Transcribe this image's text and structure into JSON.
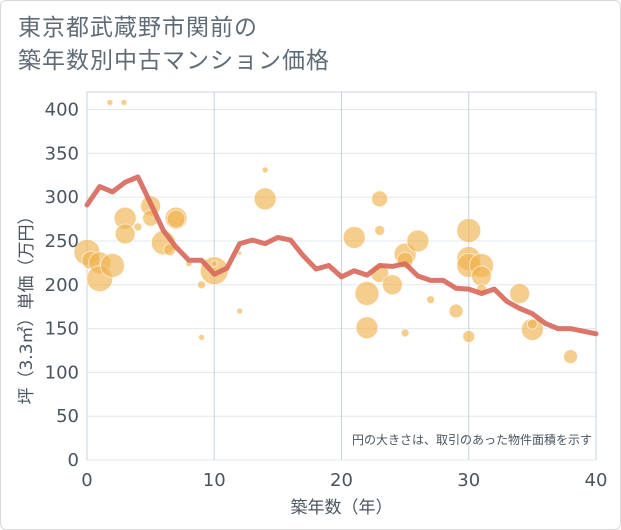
{
  "title": {
    "line1": "東京都武蔵野市関前の",
    "line2": "築年数別中古マンション価格"
  },
  "chart_data": {
    "type": "scatter+line",
    "xlabel": "築年数（年）",
    "ylabel": "坪（3.3㎡）単価（万円）",
    "xlim": [
      0,
      40
    ],
    "ylim": [
      0,
      420
    ],
    "x_ticks": [
      0,
      10,
      20,
      30,
      40
    ],
    "y_ticks": [
      0,
      50,
      100,
      150,
      200,
      250,
      300,
      350,
      400
    ],
    "grid": true,
    "annotation": "円の大きさは、取引のあった物件面積を示す",
    "colors": {
      "bubble": "#f0b24f",
      "line": "#d8675a",
      "axis_text": "#4a5560"
    },
    "line_series": {
      "x": [
        0,
        1,
        2,
        3,
        4,
        5,
        6,
        7,
        8,
        9,
        10,
        11,
        12,
        13,
        14,
        15,
        16,
        17,
        18,
        19,
        20,
        21,
        22,
        23,
        24,
        25,
        26,
        27,
        28,
        29,
        30,
        31,
        32,
        33,
        34,
        35,
        36,
        37,
        38,
        39,
        40
      ],
      "y": [
        291,
        312,
        306,
        317,
        323,
        293,
        262,
        243,
        228,
        228,
        212,
        219,
        247,
        251,
        247,
        254,
        251,
        233,
        218,
        222,
        209,
        216,
        211,
        222,
        221,
        224,
        210,
        205,
        205,
        196,
        195,
        190,
        195,
        181,
        173,
        167,
        156,
        150,
        150,
        147,
        144
      ]
    },
    "bubbles": [
      {
        "x": 0,
        "y": 237,
        "r": 13
      },
      {
        "x": 0.3,
        "y": 228,
        "r": 9
      },
      {
        "x": 1,
        "y": 225,
        "r": 11
      },
      {
        "x": 1,
        "y": 207,
        "r": 13
      },
      {
        "x": 2,
        "y": 222,
        "r": 12
      },
      {
        "x": 1.8,
        "y": 408,
        "r": 3
      },
      {
        "x": 2.9,
        "y": 408,
        "r": 3
      },
      {
        "x": 3,
        "y": 276,
        "r": 11
      },
      {
        "x": 3,
        "y": 258,
        "r": 10
      },
      {
        "x": 4,
        "y": 266,
        "r": 4
      },
      {
        "x": 5,
        "y": 290,
        "r": 10
      },
      {
        "x": 5,
        "y": 276,
        "r": 8
      },
      {
        "x": 6,
        "y": 248,
        "r": 12
      },
      {
        "x": 6.5,
        "y": 240,
        "r": 6
      },
      {
        "x": 7,
        "y": 276,
        "r": 11
      },
      {
        "x": 7,
        "y": 275,
        "r": 9
      },
      {
        "x": 8,
        "y": 224,
        "r": 3
      },
      {
        "x": 9,
        "y": 200,
        "r": 4
      },
      {
        "x": 9,
        "y": 140,
        "r": 3
      },
      {
        "x": 10,
        "y": 216,
        "r": 14
      },
      {
        "x": 10,
        "y": 224,
        "r": 3
      },
      {
        "x": 12,
        "y": 170,
        "r": 3
      },
      {
        "x": 12,
        "y": 236,
        "r": 2
      },
      {
        "x": 14,
        "y": 331,
        "r": 3
      },
      {
        "x": 14,
        "y": 298,
        "r": 11
      },
      {
        "x": 21,
        "y": 254,
        "r": 11
      },
      {
        "x": 22,
        "y": 190,
        "r": 12
      },
      {
        "x": 22,
        "y": 151,
        "r": 11
      },
      {
        "x": 23,
        "y": 298,
        "r": 8
      },
      {
        "x": 23,
        "y": 262,
        "r": 5
      },
      {
        "x": 23,
        "y": 213,
        "r": 9
      },
      {
        "x": 24,
        "y": 200,
        "r": 10
      },
      {
        "x": 25,
        "y": 235,
        "r": 11
      },
      {
        "x": 25,
        "y": 228,
        "r": 8
      },
      {
        "x": 25,
        "y": 145,
        "r": 4
      },
      {
        "x": 26,
        "y": 250,
        "r": 11
      },
      {
        "x": 27,
        "y": 183,
        "r": 4
      },
      {
        "x": 29,
        "y": 170,
        "r": 7
      },
      {
        "x": 30,
        "y": 262,
        "r": 12
      },
      {
        "x": 30,
        "y": 230,
        "r": 12
      },
      {
        "x": 30,
        "y": 222,
        "r": 12
      },
      {
        "x": 30,
        "y": 141,
        "r": 6
      },
      {
        "x": 31,
        "y": 222,
        "r": 12
      },
      {
        "x": 31,
        "y": 210,
        "r": 10
      },
      {
        "x": 31,
        "y": 195,
        "r": 5
      },
      {
        "x": 34,
        "y": 190,
        "r": 10
      },
      {
        "x": 35,
        "y": 149,
        "r": 11
      },
      {
        "x": 35,
        "y": 155,
        "r": 5
      },
      {
        "x": 38,
        "y": 118,
        "r": 7
      }
    ]
  }
}
